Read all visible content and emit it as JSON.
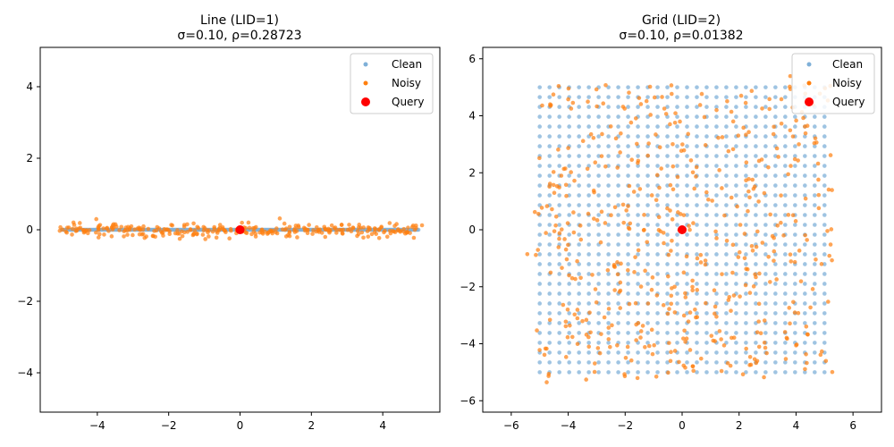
{
  "chart_data": [
    {
      "type": "scatter",
      "title": "Line (LID=1)",
      "subtitle": "σ=0.10, ρ=0.28723",
      "xlabel": "",
      "ylabel": "",
      "xlim": [
        -5.6,
        5.6
      ],
      "ylim": [
        -5.1,
        5.1
      ],
      "xticks": [
        -4,
        -2,
        0,
        2,
        4
      ],
      "yticks": [
        -4,
        -2,
        0,
        2,
        4
      ],
      "grid": false,
      "legend_position": "top-right",
      "series": [
        {
          "name": "Clean",
          "color": "#7fb0d8",
          "pattern": "line",
          "x_range": [
            -5,
            5
          ],
          "count": 300,
          "noise_sigma": 0
        },
        {
          "name": "Noisy",
          "color": "#ff7f0e",
          "pattern": "line",
          "x_range": [
            -5,
            5
          ],
          "count": 300,
          "noise_sigma": 0.1
        },
        {
          "name": "Query",
          "color": "#ff0000",
          "x": [
            0
          ],
          "y": [
            0
          ]
        }
      ]
    },
    {
      "type": "scatter",
      "title": "Grid (LID=2)",
      "subtitle": "σ=0.10, ρ=0.01382",
      "xlabel": "",
      "ylabel": "",
      "xlim": [
        -7.0,
        7.0
      ],
      "ylim": [
        -6.4,
        6.4
      ],
      "xticks": [
        -6,
        -4,
        -2,
        0,
        2,
        4,
        6
      ],
      "yticks": [
        -6,
        -4,
        -2,
        0,
        2,
        4,
        6
      ],
      "grid": false,
      "legend_position": "top-right",
      "series": [
        {
          "name": "Clean",
          "color": "#7fb0d8",
          "pattern": "grid",
          "grid_range": [
            -5,
            5
          ],
          "grid_steps": 30,
          "noise_sigma": 0
        },
        {
          "name": "Noisy",
          "color": "#ff7f0e",
          "pattern": "grid",
          "grid_range": [
            -5,
            5
          ],
          "grid_steps": 30,
          "noise_sigma": 0.1,
          "count": 500
        },
        {
          "name": "Query",
          "color": "#ff0000",
          "x": [
            0
          ],
          "y": [
            0
          ]
        }
      ]
    }
  ]
}
